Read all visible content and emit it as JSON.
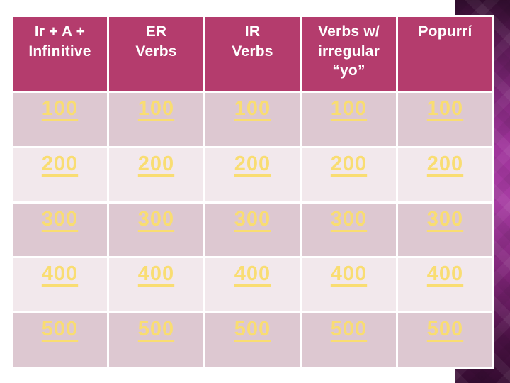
{
  "board": {
    "columns": [
      {
        "label": "Ir + A +\nInfinitive",
        "values": [
          "100",
          "200",
          "300",
          "400",
          "500"
        ]
      },
      {
        "label": "ER\nVerbs",
        "values": [
          "100",
          "200",
          "300",
          "400",
          "500"
        ]
      },
      {
        "label": "IR\nVerbs",
        "values": [
          "100",
          "200",
          "300",
          "400",
          "500"
        ]
      },
      {
        "label": "Verbs w/\nirregular\n“yo”",
        "values": [
          "100",
          "200",
          "300",
          "400",
          "500"
        ]
      },
      {
        "label": "Popurrí",
        "values": [
          "100",
          "200",
          "300",
          "400",
          "500"
        ]
      }
    ]
  },
  "colors": {
    "header-bg": "#b43c6d",
    "header-text": "#ffffff",
    "row-dark": "#ddc8d1",
    "row-light": "#f2e8ec",
    "value-text": "#f9dd72",
    "grid-line": "#ffffff",
    "band-top": "#310d2e",
    "band-mid": "#a73ca3",
    "band-bottom": "#350c31"
  }
}
